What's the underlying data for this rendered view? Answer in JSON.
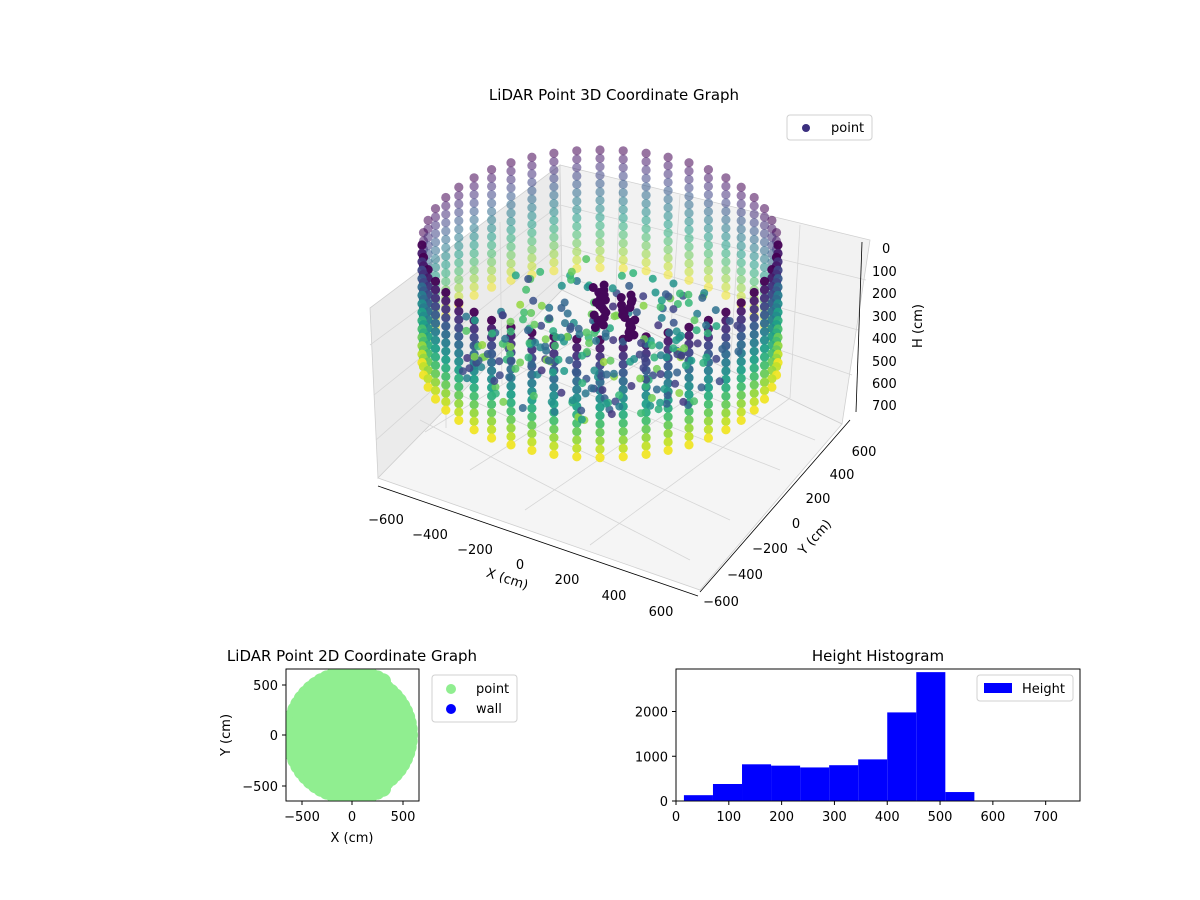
{
  "chart_data": [
    {
      "type": "scatter",
      "subtype": "3d",
      "title": "LiDAR Point 3D Coordinate Graph",
      "xlabel": "X (cm)",
      "ylabel": "Y (cm)",
      "zlabel": "H (cm)",
      "xticks": [
        "−600",
        "−400",
        "−200",
        "0",
        "200",
        "400",
        "600"
      ],
      "yticks": [
        "−600",
        "−400",
        "−200",
        "0",
        "200",
        "400",
        "600"
      ],
      "zticks": [
        "0",
        "100",
        "200",
        "300",
        "400",
        "500",
        "600",
        "700"
      ],
      "xlim": [
        -650,
        650
      ],
      "ylim": [
        -650,
        650
      ],
      "zlim": [
        0,
        750
      ],
      "z_axis_inverted": true,
      "colormap": "viridis",
      "legend": {
        "position": "top-right",
        "entries": [
          {
            "label": "point",
            "color": "#3b2f7f"
          }
        ]
      },
      "series": [
        {
          "name": "point",
          "description_points": "cylindrical wall of radius ~600 cm sampled in 48 angular columns, heights 50–550 cm, plus interior cluster"
        }
      ]
    },
    {
      "type": "scatter",
      "title": "LiDAR Point 2D Coordinate Graph",
      "xlabel": "X (cm)",
      "ylabel": "Y (cm)",
      "xticks": [
        "−500",
        "0",
        "500"
      ],
      "yticks": [
        "−500",
        "0",
        "500"
      ],
      "xlim": [
        -650,
        650
      ],
      "ylim": [
        -650,
        650
      ],
      "legend": {
        "position": "right-outside",
        "entries": [
          {
            "label": "point",
            "color": "#90ee90"
          },
          {
            "label": "wall",
            "color": "#0000ff"
          }
        ]
      },
      "series": [
        {
          "name": "point",
          "color": "#90ee90",
          "shape": "filled disk radius ~620 cm"
        },
        {
          "name": "wall",
          "color": "#0000ff",
          "points": []
        }
      ]
    },
    {
      "type": "bar",
      "subtype": "histogram",
      "title": "Height Histogram",
      "xticks": [
        "0",
        "100",
        "200",
        "300",
        "400",
        "500",
        "600",
        "700"
      ],
      "yticks": [
        "0",
        "1000",
        "2000"
      ],
      "xlim": [
        0,
        765
      ],
      "ylim": [
        0,
        2950
      ],
      "bar_color": "#0000ff",
      "legend": {
        "position": "top-right",
        "entries": [
          {
            "label": "Height",
            "color": "#0000ff"
          }
        ]
      },
      "bins": [
        {
          "x0": 15,
          "x1": 70,
          "value": 130
        },
        {
          "x0": 70,
          "x1": 125,
          "value": 380
        },
        {
          "x0": 125,
          "x1": 180,
          "value": 820
        },
        {
          "x0": 180,
          "x1": 235,
          "value": 790
        },
        {
          "x0": 235,
          "x1": 290,
          "value": 750
        },
        {
          "x0": 290,
          "x1": 345,
          "value": 800
        },
        {
          "x0": 345,
          "x1": 400,
          "value": 930
        },
        {
          "x0": 400,
          "x1": 455,
          "value": 1980
        },
        {
          "x0": 455,
          "x1": 510,
          "value": 2880
        },
        {
          "x0": 510,
          "x1": 565,
          "value": 200
        }
      ]
    }
  ]
}
